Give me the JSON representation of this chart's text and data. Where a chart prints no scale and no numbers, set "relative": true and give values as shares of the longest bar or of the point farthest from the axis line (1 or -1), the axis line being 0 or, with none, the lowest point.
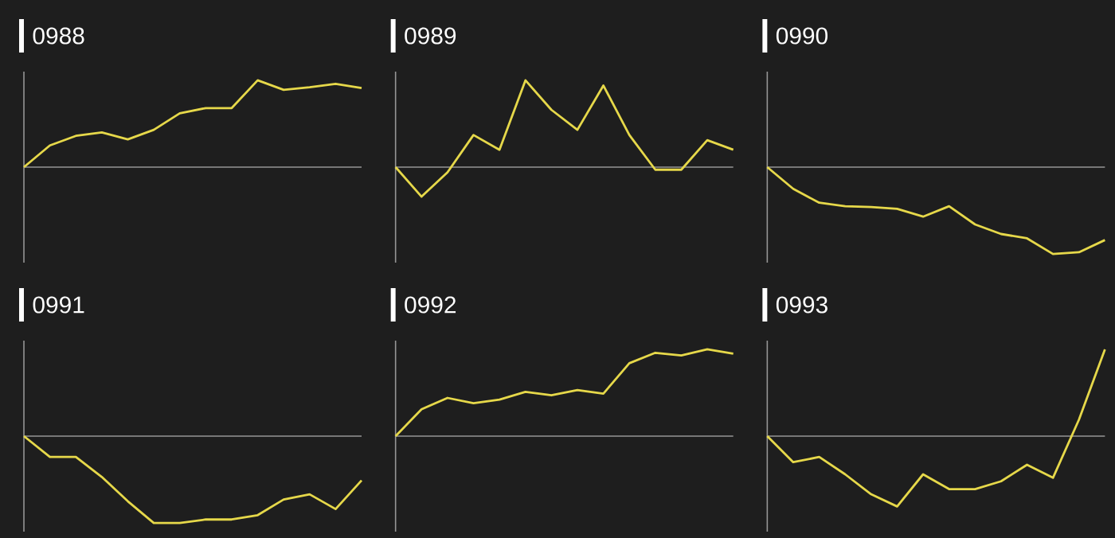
{
  "chart_data": [
    {
      "type": "line",
      "title": "0988",
      "relative": true,
      "categories": [
        null,
        null,
        null,
        null,
        null,
        null,
        null,
        null,
        null,
        null,
        null,
        null,
        null,
        null
      ],
      "values": [
        0,
        0.25,
        0.36,
        0.4,
        0.32,
        0.43,
        0.62,
        0.68,
        0.68,
        1,
        0.89,
        0.92,
        0.96,
        0.91
      ],
      "color": "#e6d84a"
    },
    {
      "type": "line",
      "title": "0989",
      "relative": true,
      "categories": [
        null,
        null,
        null,
        null,
        null,
        null,
        null,
        null,
        null,
        null,
        null,
        null,
        null,
        null
      ],
      "values": [
        0,
        -0.34,
        -0.06,
        0.37,
        0.2,
        1,
        0.66,
        0.43,
        0.94,
        0.37,
        -0.03,
        -0.03,
        0.31,
        0.2
      ],
      "color": "#e6d84a"
    },
    {
      "type": "line",
      "title": "0990",
      "relative": true,
      "categories": [
        null,
        null,
        null,
        null,
        null,
        null,
        null,
        null,
        null,
        null,
        null,
        null,
        null,
        null
      ],
      "values": [
        0,
        -0.25,
        -0.41,
        -0.45,
        -0.46,
        -0.48,
        -0.57,
        -0.45,
        -0.66,
        -0.77,
        -0.82,
        -1,
        -0.98,
        -0.84
      ],
      "color": "#e6d84a"
    },
    {
      "type": "line",
      "title": "0991",
      "relative": true,
      "categories": [
        null,
        null,
        null,
        null,
        null,
        null,
        null,
        null,
        null,
        null,
        null,
        null,
        null,
        null
      ],
      "values": [
        0,
        -0.24,
        -0.24,
        -0.47,
        -0.75,
        -1,
        -1,
        -0.96,
        -0.96,
        -0.91,
        -0.73,
        -0.67,
        -0.84,
        -0.51
      ],
      "color": "#e6d84a"
    },
    {
      "type": "line",
      "title": "0992",
      "relative": true,
      "categories": [
        null,
        null,
        null,
        null,
        null,
        null,
        null,
        null,
        null,
        null,
        null,
        null,
        null,
        null
      ],
      "values": [
        0,
        0.31,
        0.44,
        0.38,
        0.42,
        0.51,
        0.47,
        0.53,
        0.49,
        0.84,
        0.96,
        0.93,
        1,
        0.95
      ],
      "color": "#e6d84a"
    },
    {
      "type": "line",
      "title": "0993",
      "relative": true,
      "categories": [
        null,
        null,
        null,
        null,
        null,
        null,
        null,
        null,
        null,
        null,
        null,
        null,
        null,
        null
      ],
      "values": [
        0,
        -0.3,
        -0.24,
        -0.44,
        -0.67,
        -0.81,
        -0.44,
        -0.61,
        -0.61,
        -0.52,
        -0.33,
        -0.48,
        0.19,
        1
      ],
      "color": "#e6d84a"
    }
  ]
}
